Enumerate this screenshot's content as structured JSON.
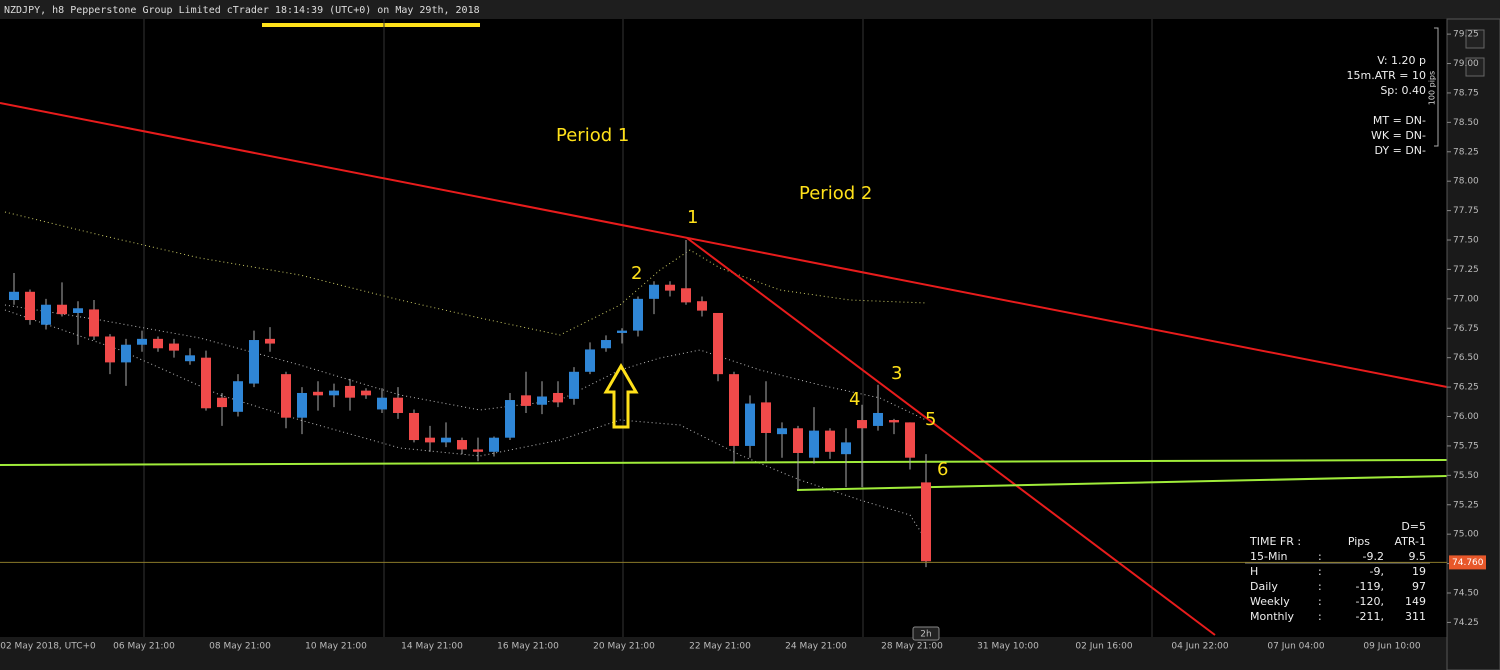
{
  "chart_data": {
    "type": "candlestick",
    "title": "NZDJPY, h8 Pepperstone Group Limited cTrader 18:14:39 (UTC+0) on May 29th, 2018",
    "up_color": "#2f86d6",
    "down_color": "#f04a4a",
    "open": [
      76.99,
      77.06,
      76.78,
      76.95,
      76.88,
      76.91,
      76.68,
      76.46,
      76.61,
      76.66,
      76.62,
      76.47,
      76.5,
      76.16,
      76.04,
      76.28,
      76.66,
      76.36,
      75.99,
      76.21,
      76.18,
      76.26,
      76.22,
      76.06,
      76.16,
      76.03,
      75.82,
      75.78,
      75.8,
      75.72,
      75.7,
      75.82,
      76.18,
      76.1,
      76.2,
      76.15,
      76.38,
      76.58,
      76.71,
      76.73,
      77.0,
      77.12,
      77.09,
      76.98,
      76.88,
      76.36,
      75.75,
      76.12,
      75.85,
      75.9,
      75.65,
      75.88,
      75.68,
      75.97,
      75.92,
      75.97,
      75.95,
      75.44
    ],
    "high": [
      77.22,
      77.08,
      77.0,
      77.14,
      76.98,
      76.99,
      76.7,
      76.66,
      76.73,
      76.68,
      76.66,
      76.58,
      76.56,
      76.2,
      76.36,
      76.73,
      76.76,
      76.38,
      76.25,
      76.3,
      76.28,
      76.32,
      76.24,
      76.24,
      76.25,
      76.06,
      75.92,
      75.95,
      75.82,
      75.82,
      75.83,
      76.2,
      76.38,
      76.3,
      76.3,
      76.42,
      76.63,
      76.69,
      76.75,
      77.02,
      77.15,
      77.15,
      77.5,
      77.02,
      76.88,
      76.38,
      76.18,
      76.3,
      75.95,
      75.92,
      76.08,
      75.9,
      75.9,
      76.1,
      76.27,
      75.98,
      75.95,
      75.68
    ],
    "low": [
      76.95,
      76.78,
      76.74,
      76.85,
      76.61,
      76.65,
      76.36,
      76.26,
      76.55,
      76.55,
      76.5,
      76.44,
      76.05,
      75.92,
      76.0,
      76.25,
      76.55,
      75.9,
      75.85,
      76.05,
      76.08,
      76.05,
      76.15,
      76.03,
      75.98,
      75.78,
      75.7,
      75.74,
      75.68,
      75.62,
      75.66,
      75.8,
      76.03,
      76.02,
      76.08,
      76.1,
      76.36,
      76.55,
      76.62,
      76.68,
      76.87,
      77.02,
      76.95,
      76.85,
      76.3,
      75.6,
      75.65,
      75.62,
      75.65,
      75.38,
      75.6,
      75.64,
      75.4,
      75.4,
      75.88,
      75.85,
      75.55,
      74.72
    ],
    "close": [
      77.06,
      76.82,
      76.95,
      76.87,
      76.92,
      76.68,
      76.46,
      76.61,
      76.66,
      76.58,
      76.56,
      76.52,
      76.07,
      76.08,
      76.3,
      76.65,
      76.62,
      75.99,
      76.2,
      76.18,
      76.22,
      76.16,
      76.18,
      76.16,
      76.03,
      75.8,
      75.78,
      75.82,
      75.72,
      75.7,
      75.82,
      76.14,
      76.09,
      76.17,
      76.12,
      76.38,
      76.57,
      76.65,
      76.73,
      77.0,
      77.12,
      77.07,
      76.97,
      76.9,
      76.36,
      75.75,
      76.11,
      75.86,
      75.9,
      75.69,
      75.88,
      75.7,
      75.78,
      75.9,
      76.03,
      75.95,
      75.65,
      74.77
    ],
    "ylim": [
      74.16,
      79.37
    ],
    "yticks": [
      79.25,
      {
        "value": 79,
        "label": "79.00"
      },
      78.75,
      {
        "value": 78.5,
        "label": "78.50"
      },
      78.25,
      {
        "value": 78,
        "label": "78.00"
      },
      77.75,
      {
        "value": 77.5,
        "label": "77.50"
      },
      77.25,
      {
        "value": 77,
        "label": "77.00"
      },
      76.75,
      {
        "value": 76.5,
        "label": "76.50"
      },
      76.25,
      {
        "value": 76,
        "label": "76.00"
      },
      75.75,
      {
        "value": 75.5,
        "label": "75.50"
      },
      75.25,
      {
        "value": 75,
        "label": "75.00"
      },
      74.75,
      {
        "value": 74.5,
        "label": "74.50"
      },
      74.25
    ],
    "xtick_labels": [
      "02 May 2018, UTC+0",
      "06 May 21:00",
      "08 May 21:00",
      "10 May 21:00",
      "14 May 21:00",
      "16 May 21:00",
      "20 May 21:00",
      "22 May 21:00",
      "24 May 21:00",
      "28 May 21:00",
      "31 May 10:00",
      "02 Jun 16:00",
      "04 Jun 22:00",
      "07 Jun 04:00",
      "09 Jun 10:00"
    ],
    "last_price": {
      "value": 74.76,
      "label": "74.760"
    },
    "timeframe_marker": "2h",
    "annotations": [
      "Period 1",
      "Period 2",
      "1",
      "2",
      "3",
      "4",
      "5",
      "6"
    ],
    "info": [
      "V: 1.20 p",
      "15m.ATR = 10",
      "Sp: 0.40",
      "MT = DN-",
      "WK = DN-",
      "DY = DN-"
    ],
    "pips_scale": "100 pips",
    "stats": {
      "title": "D=5",
      "header": [
        "TIME FR :",
        "Pips",
        "ATR-1"
      ],
      "rows": [
        [
          "15-Min",
          ":",
          "-9.2",
          "9.5"
        ],
        [
          "H",
          ":",
          "-9,",
          "19"
        ],
        [
          "Daily",
          ":",
          "-119,",
          "97"
        ],
        [
          "Weekly",
          ":",
          "-120,",
          "149"
        ],
        [
          "Monthly",
          ":",
          "-211,",
          "311"
        ]
      ]
    }
  }
}
